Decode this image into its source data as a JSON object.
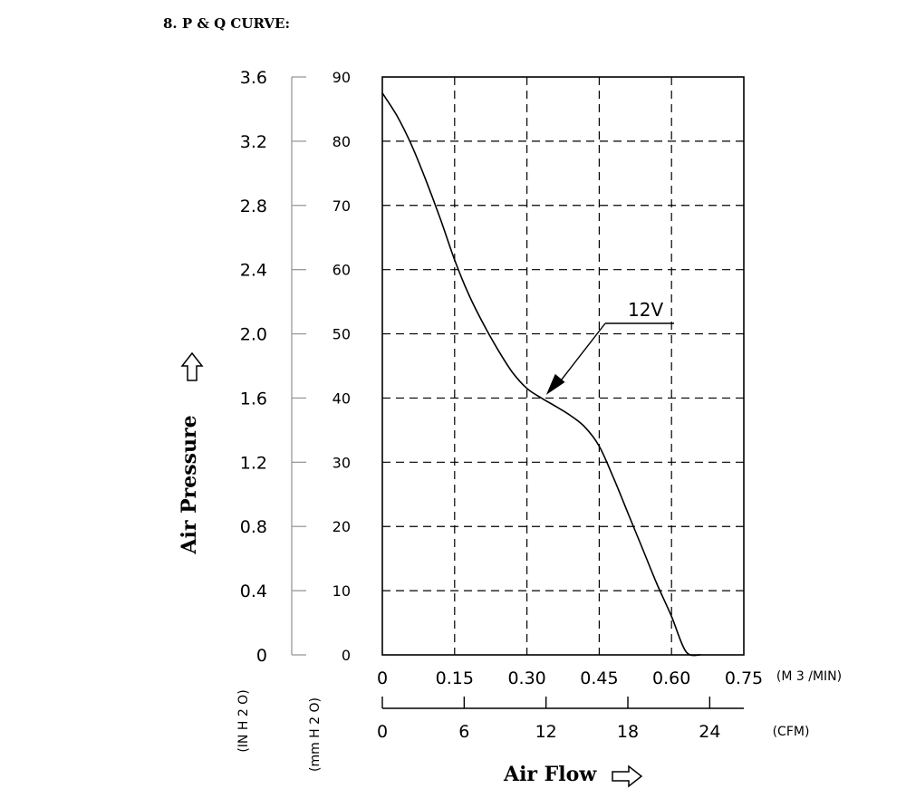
{
  "heading": "8. P & Q CURVE:",
  "colors": {
    "ink": "#000000",
    "in_axis": "#999999"
  },
  "chart_data": {
    "type": "line",
    "title": "8. P & Q CURVE:",
    "xlabel": "Air Flow",
    "ylabel": "Air Pressure",
    "xlim": [
      0,
      0.75
    ],
    "ylim": [
      0,
      90
    ],
    "grid": true,
    "x_ticks": [
      "0",
      "0.15",
      "0.30",
      "0.45",
      "0.60",
      "0.75"
    ],
    "x_unit": "(M 3 /MIN)",
    "cfm_ticks": [
      "0",
      "6",
      "12",
      "18",
      "24"
    ],
    "cfm_unit": "(CFM)",
    "y_ticks_mm": [
      "0",
      "10",
      "20",
      "30",
      "40",
      "50",
      "60",
      "70",
      "80",
      "90"
    ],
    "y_ticks_in": [
      "0",
      "0.4",
      "0.8",
      "1.2",
      "1.6",
      "2.0",
      "2.4",
      "2.8",
      "3.2",
      "3.6"
    ],
    "y_unit_in": "(IN H 2 O)",
    "y_unit_mm": "(mm H 2 O)",
    "series": [
      {
        "name": "12V",
        "x": [
          0,
          0.03,
          0.06,
          0.09,
          0.12,
          0.15,
          0.18,
          0.21,
          0.24,
          0.27,
          0.3,
          0.33,
          0.36,
          0.39,
          0.42,
          0.45,
          0.48,
          0.51,
          0.54,
          0.57,
          0.6,
          0.63,
          0.66
        ],
        "y": [
          87.5,
          84,
          79.5,
          74,
          68,
          61.5,
          56,
          51.5,
          47.5,
          44,
          41.5,
          40,
          38.7,
          37.3,
          35.5,
          32.5,
          27.5,
          22,
          16.5,
          11,
          6,
          0.5,
          0
        ]
      }
    ],
    "annotation": {
      "text": "12V",
      "x": 0.34,
      "y": 40.5
    }
  }
}
